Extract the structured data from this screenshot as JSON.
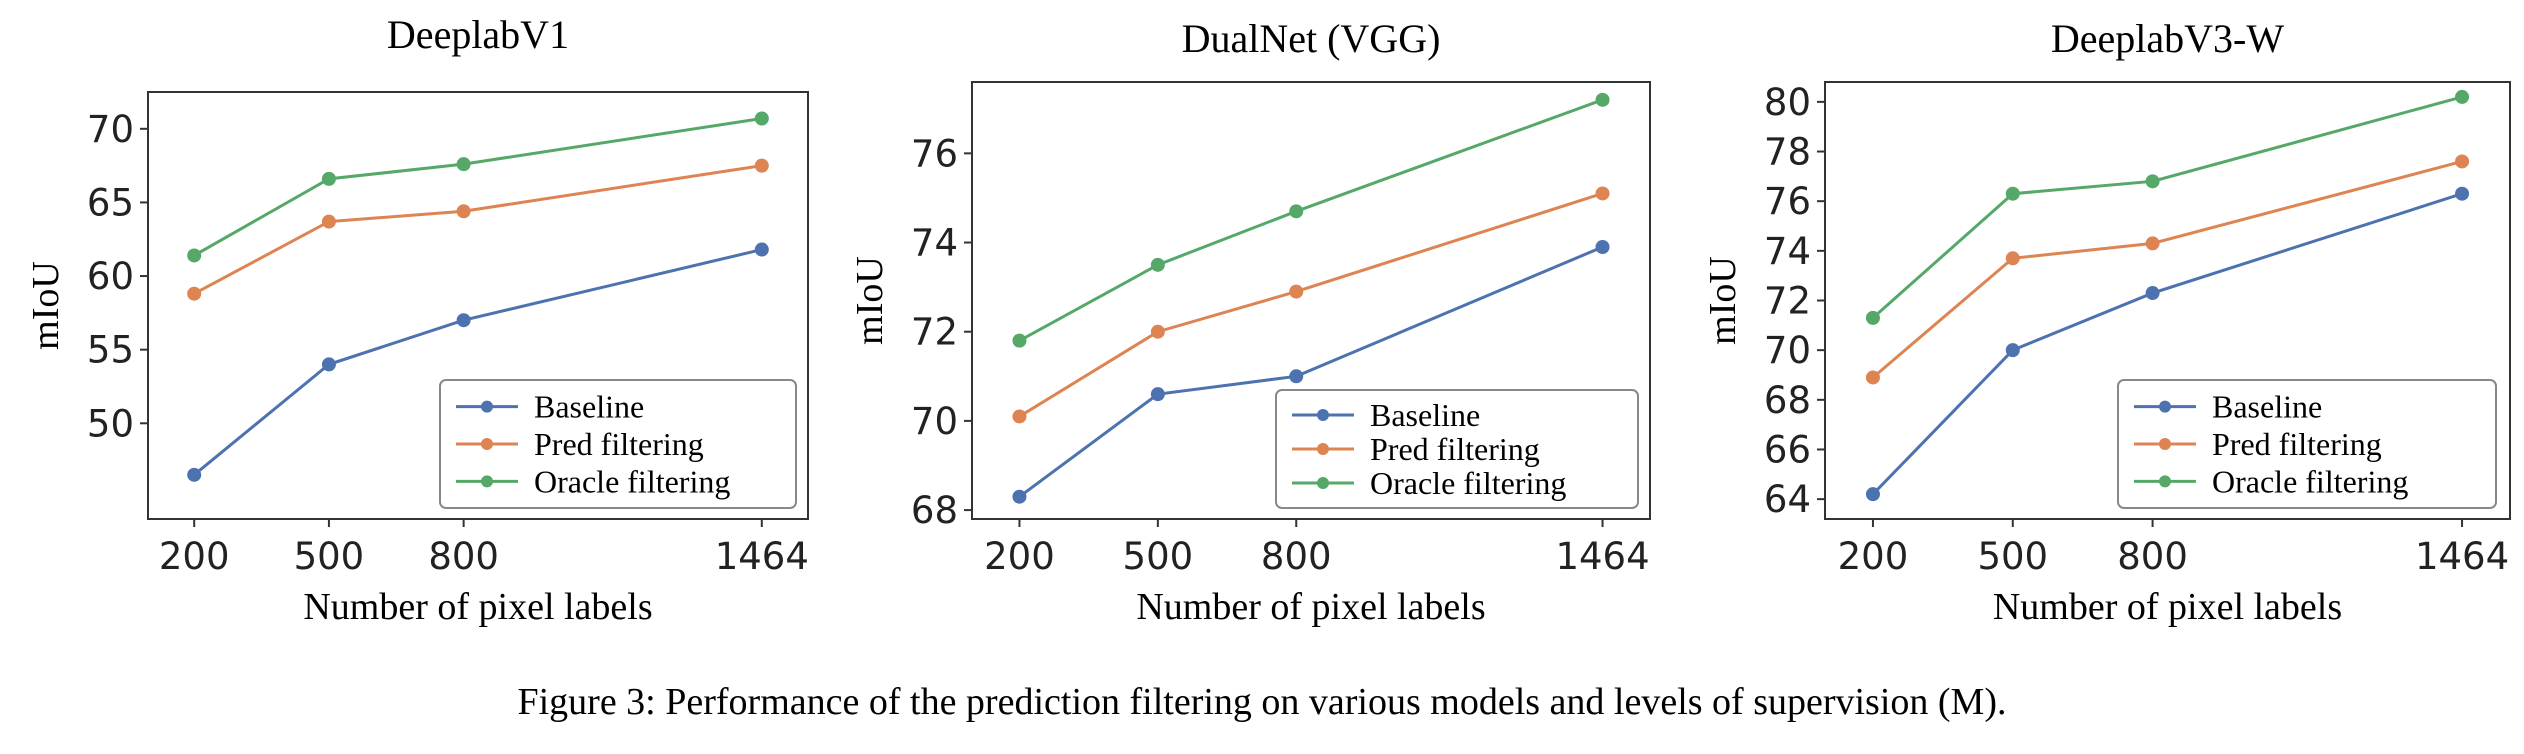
{
  "caption": "Figure 3: Performance of the prediction filtering on various models and levels of supervision (M).",
  "colors": {
    "baseline": "#4c72b0",
    "pred": "#dd8452",
    "oracle": "#55a868"
  },
  "chart_data": [
    {
      "type": "line",
      "title": "DeeplabV1",
      "xlabel": "Number of pixel labels",
      "ylabel": "mIoU",
      "x": [
        200,
        500,
        800,
        1464
      ],
      "xticks": [
        "200",
        "500",
        "800",
        "1464"
      ],
      "yticks": [
        50,
        55,
        60,
        65,
        70
      ],
      "ylim": [
        43.5,
        72.5
      ],
      "legend": "bottom-right",
      "series": [
        {
          "name": "Baseline",
          "values": [
            46.5,
            54.0,
            57.0,
            61.8
          ]
        },
        {
          "name": "Pred filtering",
          "values": [
            58.8,
            63.7,
            64.4,
            67.5
          ]
        },
        {
          "name": "Oracle filtering",
          "values": [
            61.4,
            66.6,
            67.6,
            70.7
          ]
        }
      ]
    },
    {
      "type": "line",
      "title": "DualNet (VGG)",
      "xlabel": "Number of pixel labels",
      "ylabel": "mIoU",
      "x": [
        200,
        500,
        800,
        1464
      ],
      "xticks": [
        "200",
        "500",
        "800",
        "1464"
      ],
      "yticks": [
        68,
        70,
        72,
        74,
        76
      ],
      "ylim": [
        67.8,
        77.6
      ],
      "legend": "bottom-right",
      "series": [
        {
          "name": "Baseline",
          "values": [
            68.3,
            70.6,
            71.0,
            73.9
          ]
        },
        {
          "name": "Pred filtering",
          "values": [
            70.1,
            72.0,
            72.9,
            75.1
          ]
        },
        {
          "name": "Oracle filtering",
          "values": [
            71.8,
            73.5,
            74.7,
            77.2
          ]
        }
      ]
    },
    {
      "type": "line",
      "title": "DeeplabV3-W",
      "xlabel": "Number of pixel labels",
      "ylabel": "mIoU",
      "x": [
        200,
        500,
        800,
        1464
      ],
      "xticks": [
        "200",
        "500",
        "800",
        "1464"
      ],
      "yticks": [
        64,
        66,
        68,
        70,
        72,
        74,
        76,
        78,
        80
      ],
      "ylim": [
        63.2,
        80.8
      ],
      "legend": "bottom-right",
      "series": [
        {
          "name": "Baseline",
          "values": [
            64.2,
            70.0,
            72.3,
            76.3
          ]
        },
        {
          "name": "Pred filtering",
          "values": [
            68.9,
            73.7,
            74.3,
            77.6
          ]
        },
        {
          "name": "Oracle filtering",
          "values": [
            71.3,
            76.3,
            76.8,
            80.2
          ]
        }
      ]
    }
  ]
}
